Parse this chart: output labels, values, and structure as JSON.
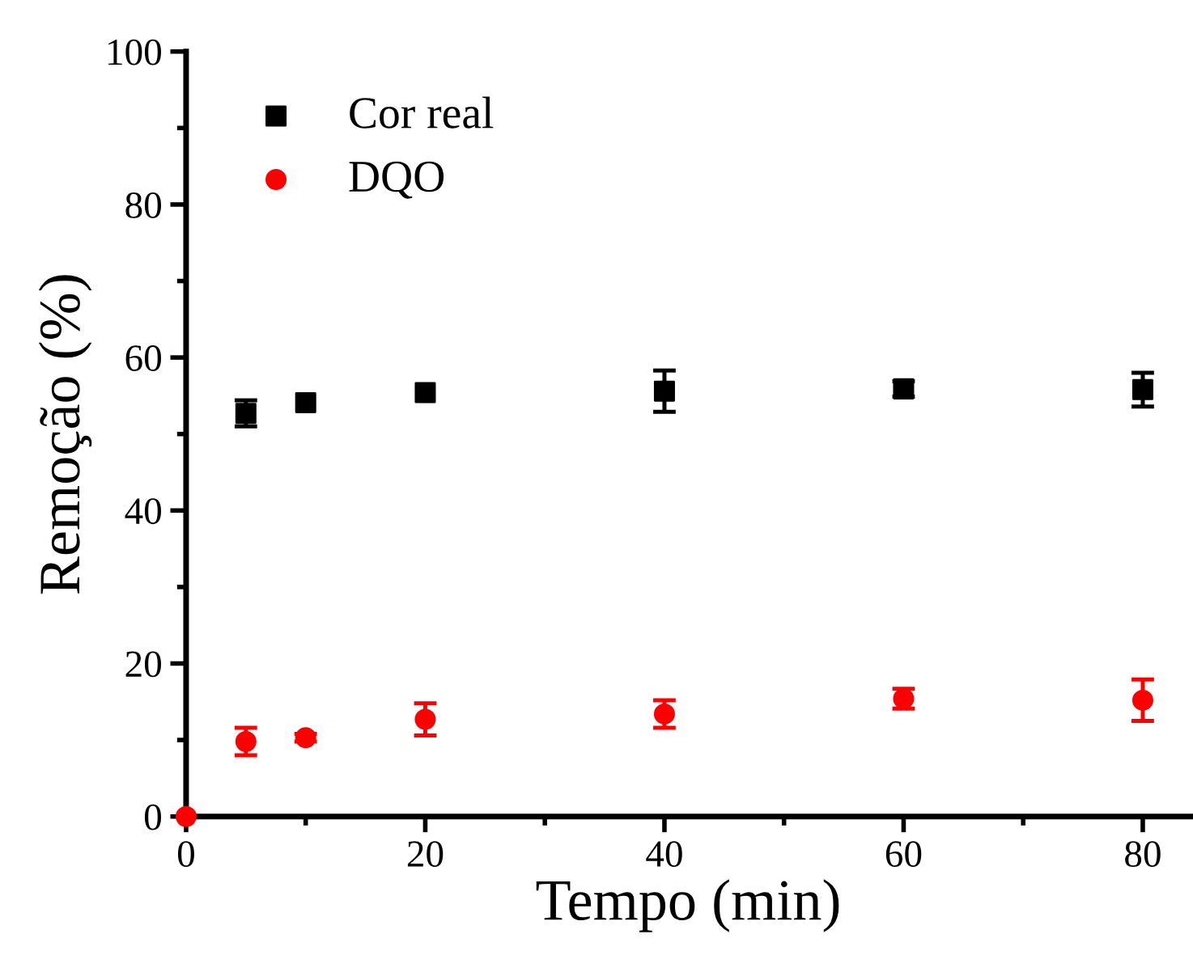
{
  "chart_data": {
    "type": "scatter",
    "xlabel": "Tempo (min)",
    "ylabel": "Remoção (%)",
    "xlim": [
      0,
      84
    ],
    "ylim": [
      0,
      100
    ],
    "xticks": [
      0,
      20,
      40,
      60,
      80
    ],
    "yticks": [
      0,
      20,
      40,
      60,
      80,
      100
    ],
    "grid": false,
    "legend": "top left",
    "series": [
      {
        "name": "Cor real",
        "color": "#000000",
        "marker": "square",
        "x": [
          5,
          10,
          20,
          40,
          60,
          80
        ],
        "values": [
          52.7,
          54.1,
          55.4,
          55.6,
          55.9,
          55.8
        ],
        "errors": [
          1.7,
          null,
          null,
          2.7,
          1.0,
          2.2
        ]
      },
      {
        "name": "DQO",
        "color": "#ff0000",
        "marker": "circle",
        "x": [
          0,
          5,
          10,
          20,
          40,
          60,
          80
        ],
        "values": [
          0,
          9.8,
          10.3,
          12.7,
          13.4,
          15.4,
          15.2
        ],
        "errors": [
          null,
          1.8,
          0.5,
          2.1,
          1.8,
          1.3,
          2.7
        ]
      }
    ]
  }
}
